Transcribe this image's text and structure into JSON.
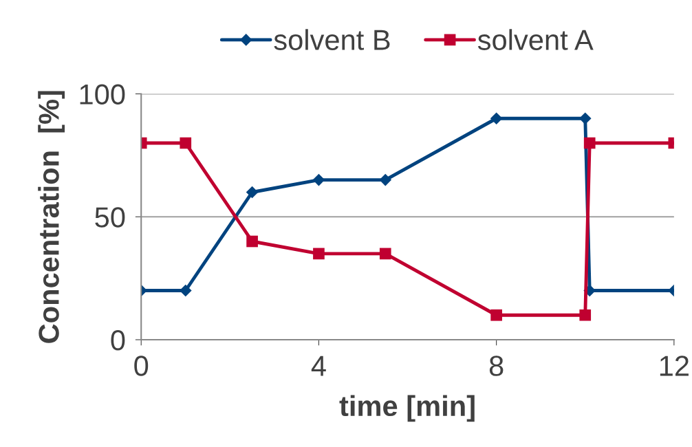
{
  "chart_data": {
    "type": "line",
    "xlabel": "time [min]",
    "ylabel": "Concentration  [%]",
    "x": [
      0,
      1,
      2.5,
      4,
      5.5,
      8,
      10,
      10.1,
      12
    ],
    "series": [
      {
        "name": "solvent B",
        "color": "#00437f",
        "marker": "diamond",
        "values": [
          20,
          20,
          60,
          65,
          65,
          90,
          90,
          20,
          20
        ]
      },
      {
        "name": "solvent A",
        "color": "#c00030",
        "marker": "square",
        "values": [
          80,
          80,
          40,
          35,
          35,
          10,
          10,
          80,
          80
        ]
      }
    ],
    "xlim": [
      0,
      12
    ],
    "xticks": [
      0,
      4,
      8,
      12
    ],
    "ylim": [
      0,
      100
    ],
    "yticks": [
      0,
      50,
      100
    ],
    "grid": "y",
    "legend": "top",
    "line_style": "solid"
  }
}
